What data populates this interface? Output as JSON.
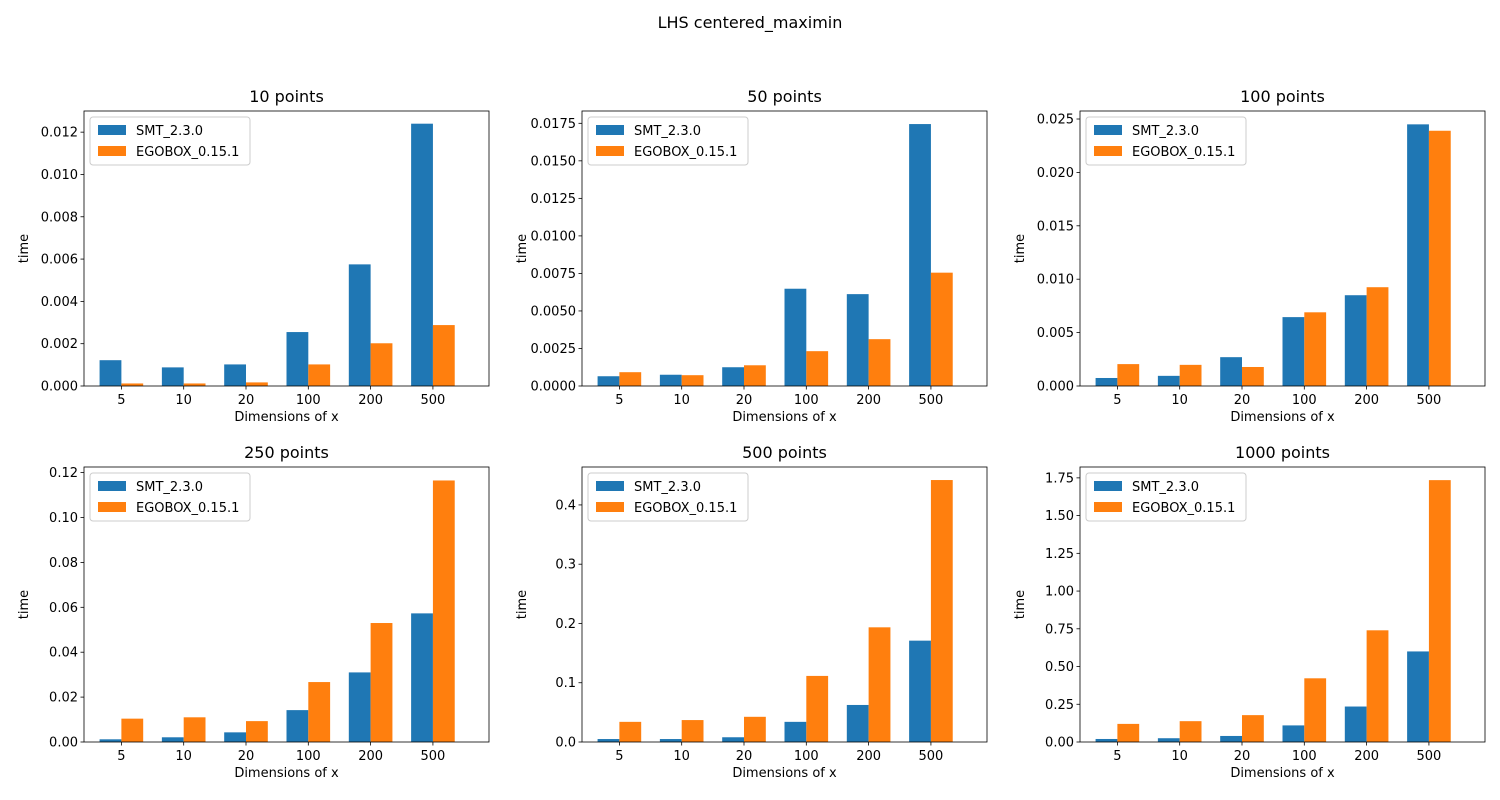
{
  "figure": {
    "title": "LHS centered_maximin",
    "colors": {
      "SMT_2.3.0": "#1f77b4",
      "EGOBOX_0.15.1": "#ff7f0e"
    }
  },
  "chart_data": [
    {
      "type": "bar",
      "title": "10 points",
      "xlabel": "Dimensions of x",
      "ylabel": "time",
      "categories": [
        "5",
        "10",
        "20",
        "100",
        "200",
        "500"
      ],
      "series": [
        {
          "name": "SMT_2.3.0",
          "values": [
            0.00122,
            0.00088,
            0.00102,
            0.00255,
            0.00575,
            0.0124
          ]
        },
        {
          "name": "EGOBOX_0.15.1",
          "values": [
            0.00012,
            0.00012,
            0.00017,
            0.00102,
            0.00202,
            0.00288
          ]
        }
      ],
      "ylim": [
        0,
        0.013
      ],
      "yticks": [
        0,
        0.002,
        0.004,
        0.006,
        0.008,
        0.01,
        0.012
      ],
      "ytick_labels": [
        "0.000",
        "0.002",
        "0.004",
        "0.006",
        "0.008",
        "0.010",
        "0.012"
      ],
      "legend": "upper-left",
      "grid": false
    },
    {
      "type": "bar",
      "title": "50 points",
      "xlabel": "Dimensions of x",
      "ylabel": "time",
      "categories": [
        "5",
        "10",
        "20",
        "100",
        "200",
        "500"
      ],
      "series": [
        {
          "name": "SMT_2.3.0",
          "values": [
            0.00065,
            0.00075,
            0.00125,
            0.00648,
            0.00612,
            0.01745
          ]
        },
        {
          "name": "EGOBOX_0.15.1",
          "values": [
            0.00092,
            0.00072,
            0.00138,
            0.00232,
            0.00312,
            0.00755
          ]
        }
      ],
      "ylim": [
        0,
        0.01832
      ],
      "yticks": [
        0,
        0.0025,
        0.005,
        0.0075,
        0.01,
        0.0125,
        0.015,
        0.0175
      ],
      "ytick_labels": [
        "0.0000",
        "0.0025",
        "0.0050",
        "0.0075",
        "0.0100",
        "0.0125",
        "0.0150",
        "0.0175"
      ],
      "legend": "upper-left",
      "grid": false
    },
    {
      "type": "bar",
      "title": "100 points",
      "xlabel": "Dimensions of x",
      "ylabel": "time",
      "categories": [
        "5",
        "10",
        "20",
        "100",
        "200",
        "500"
      ],
      "series": [
        {
          "name": "SMT_2.3.0",
          "values": [
            0.00075,
            0.00095,
            0.0027,
            0.00645,
            0.0085,
            0.0245
          ]
        },
        {
          "name": "EGOBOX_0.15.1",
          "values": [
            0.00205,
            0.00198,
            0.00178,
            0.0069,
            0.00925,
            0.0239
          ]
        }
      ],
      "ylim": [
        0,
        0.02575
      ],
      "yticks": [
        0,
        0.005,
        0.01,
        0.015,
        0.02,
        0.025
      ],
      "ytick_labels": [
        "0.000",
        "0.005",
        "0.010",
        "0.015",
        "0.020",
        "0.025"
      ],
      "legend": "upper-left",
      "grid": false
    },
    {
      "type": "bar",
      "title": "250 points",
      "xlabel": "Dimensions of x",
      "ylabel": "time",
      "categories": [
        "5",
        "10",
        "20",
        "100",
        "200",
        "500"
      ],
      "series": [
        {
          "name": "SMT_2.3.0",
          "values": [
            0.0012,
            0.0021,
            0.0043,
            0.0142,
            0.031,
            0.0573
          ]
        },
        {
          "name": "EGOBOX_0.15.1",
          "values": [
            0.0104,
            0.011,
            0.0093,
            0.0267,
            0.053,
            0.1165
          ]
        }
      ],
      "ylim": [
        0,
        0.1225
      ],
      "yticks": [
        0,
        0.02,
        0.04,
        0.06,
        0.08,
        0.1,
        0.12
      ],
      "ytick_labels": [
        "0.00",
        "0.02",
        "0.04",
        "0.06",
        "0.08",
        "0.10",
        "0.12"
      ],
      "legend": "upper-left",
      "grid": false
    },
    {
      "type": "bar",
      "title": "500 points",
      "xlabel": "Dimensions of x",
      "ylabel": "time",
      "categories": [
        "5",
        "10",
        "20",
        "100",
        "200",
        "500"
      ],
      "series": [
        {
          "name": "SMT_2.3.0",
          "values": [
            0.005,
            0.005,
            0.008,
            0.034,
            0.0625,
            0.171
          ]
        },
        {
          "name": "EGOBOX_0.15.1",
          "values": [
            0.034,
            0.037,
            0.0425,
            0.1115,
            0.1935,
            0.442
          ]
        }
      ],
      "ylim": [
        0,
        0.464
      ],
      "yticks": [
        0,
        0.1,
        0.2,
        0.3,
        0.4
      ],
      "ytick_labels": [
        "0.0",
        "0.1",
        "0.2",
        "0.3",
        "0.4"
      ],
      "legend": "upper-left",
      "grid": false
    },
    {
      "type": "bar",
      "title": "1000 points",
      "xlabel": "Dimensions of x",
      "ylabel": "time",
      "categories": [
        "5",
        "10",
        "20",
        "100",
        "200",
        "500"
      ],
      "series": [
        {
          "name": "SMT_2.3.0",
          "values": [
            0.02,
            0.025,
            0.04,
            0.11,
            0.235,
            0.6
          ]
        },
        {
          "name": "EGOBOX_0.15.1",
          "values": [
            0.12,
            0.138,
            0.178,
            0.422,
            0.74,
            1.735
          ]
        }
      ],
      "ylim": [
        0,
        1.822
      ],
      "yticks": [
        0,
        0.25,
        0.5,
        0.75,
        1.0,
        1.25,
        1.5,
        1.75
      ],
      "ytick_labels": [
        "0.00",
        "0.25",
        "0.50",
        "0.75",
        "1.00",
        "1.25",
        "1.50",
        "1.75"
      ],
      "legend": "upper-left",
      "grid": false
    }
  ]
}
